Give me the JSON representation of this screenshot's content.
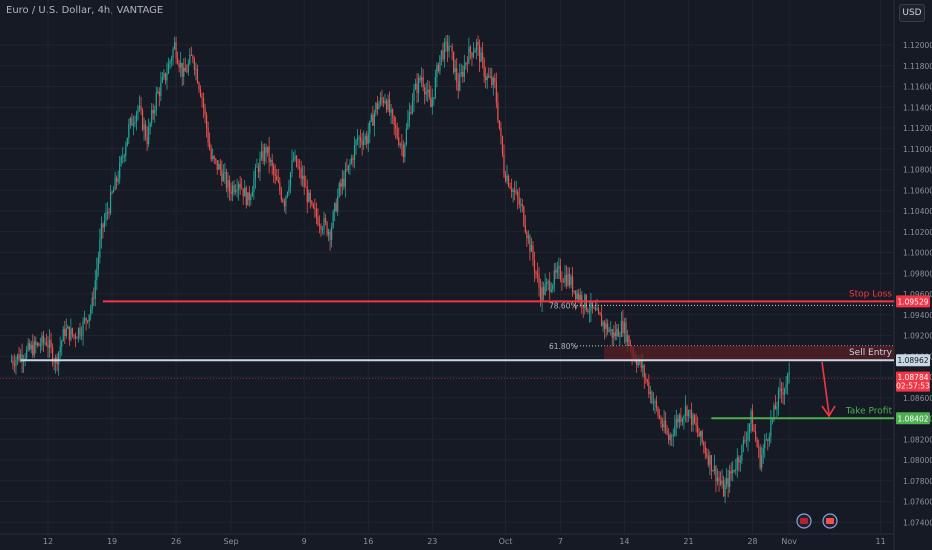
{
  "header": {
    "title": "Euro / U.S. Dollar, 4h, VANTAGE",
    "currency_button": "USD"
  },
  "colors": {
    "bg": "#161a25",
    "up": "#26a69a",
    "down": "#ef5350",
    "stop": "#f23645",
    "entry": "#c9d6e3",
    "tp": "#4caf50",
    "grid": "#202430"
  },
  "chart_data": {
    "type": "candlestick",
    "symbol": "EURUSD",
    "timeframe": "4h",
    "y_axis": {
      "range": [
        1.0735,
        1.1215
      ],
      "ticks": [
        "1.12000",
        "1.11800",
        "1.11600",
        "1.11400",
        "1.11200",
        "1.11000",
        "1.10800",
        "1.10600",
        "1.10400",
        "1.10200",
        "1.10000",
        "1.09800",
        "1.09600",
        "1.09400",
        "1.09200",
        "1.09000",
        "1.08800",
        "1.08600",
        "1.08400",
        "1.08200",
        "1.08000",
        "1.07800",
        "1.07600",
        "1.07400"
      ]
    },
    "x_axis": {
      "labels": [
        {
          "label": "12",
          "day": 0
        },
        {
          "label": "19",
          "day": 7
        },
        {
          "label": "26",
          "day": 14
        },
        {
          "label": "Sep",
          "day": 20
        },
        {
          "label": "9",
          "day": 28
        },
        {
          "label": "16",
          "day": 35
        },
        {
          "label": "23",
          "day": 42
        },
        {
          "label": "Oct",
          "day": 50
        },
        {
          "label": "7",
          "day": 56
        },
        {
          "label": "14",
          "day": 63
        },
        {
          "label": "21",
          "day": 70
        },
        {
          "label": "28",
          "day": 77
        },
        {
          "label": "Nov",
          "day": 81
        },
        {
          "label": "11",
          "day": 91
        }
      ]
    },
    "price_path": [
      [
        -4,
        1.0895
      ],
      [
        0,
        1.0915
      ],
      [
        1,
        1.0895
      ],
      [
        2,
        1.0925
      ],
      [
        3,
        1.092
      ],
      [
        4,
        1.093
      ],
      [
        5,
        1.095
      ],
      [
        6,
        1.102
      ],
      [
        7,
        1.105
      ],
      [
        8,
        1.108
      ],
      [
        9,
        1.112
      ],
      [
        10,
        1.114
      ],
      [
        11,
        1.111
      ],
      [
        12,
        1.115
      ],
      [
        13,
        1.117
      ],
      [
        14,
        1.12
      ],
      [
        15,
        1.117
      ],
      [
        16,
        1.119
      ],
      [
        17,
        1.115
      ],
      [
        18,
        1.109
      ],
      [
        19,
        1.108
      ],
      [
        20,
        1.106
      ],
      [
        21,
        1.107
      ],
      [
        22,
        1.105
      ],
      [
        23,
        1.108
      ],
      [
        24,
        1.11
      ],
      [
        25,
        1.107
      ],
      [
        26,
        1.105
      ],
      [
        27,
        1.109
      ],
      [
        28,
        1.107
      ],
      [
        29,
        1.104
      ],
      [
        30,
        1.103
      ],
      [
        31,
        1.102
      ],
      [
        32,
        1.106
      ],
      [
        33,
        1.108
      ],
      [
        34,
        1.111
      ],
      [
        35,
        1.111
      ],
      [
        36,
        1.114
      ],
      [
        37,
        1.115
      ],
      [
        38,
        1.112
      ],
      [
        39,
        1.11
      ],
      [
        40,
        1.115
      ],
      [
        41,
        1.117
      ],
      [
        42,
        1.114
      ],
      [
        43,
        1.119
      ],
      [
        44,
        1.12
      ],
      [
        45,
        1.116
      ],
      [
        46,
        1.119
      ],
      [
        47,
        1.12
      ],
      [
        48,
        1.117
      ],
      [
        49,
        1.116
      ],
      [
        50,
        1.108
      ],
      [
        51,
        1.106
      ],
      [
        52,
        1.104
      ],
      [
        53,
        1.1
      ],
      [
        54,
        1.096
      ],
      [
        55,
        1.097
      ],
      [
        56,
        1.098
      ],
      [
        57,
        1.0975
      ],
      [
        58,
        1.096
      ],
      [
        59,
        1.095
      ],
      [
        60,
        1.094
      ],
      [
        61,
        1.093
      ],
      [
        62,
        1.092
      ],
      [
        63,
        1.093
      ],
      [
        64,
        1.0905
      ],
      [
        65,
        1.089
      ],
      [
        66,
        1.0865
      ],
      [
        67,
        1.084
      ],
      [
        68,
        1.082
      ],
      [
        69,
        1.084
      ],
      [
        70,
        1.085
      ],
      [
        71,
        1.083
      ],
      [
        72,
        1.081
      ],
      [
        73,
        1.079
      ],
      [
        74,
        1.077
      ],
      [
        75,
        1.079
      ],
      [
        76,
        1.081
      ],
      [
        77,
        1.084
      ],
      [
        78,
        1.08
      ],
      [
        79,
        1.083
      ],
      [
        80,
        1.086
      ],
      [
        81,
        1.0878
      ]
    ],
    "levels": [
      {
        "name": "Stop Loss",
        "value": 1.09529,
        "label": "1.09529",
        "color": "#f23645",
        "start_day": 6
      },
      {
        "name": "Sell Entry",
        "value": 1.08962,
        "label": "1.08962",
        "color": "#c9d6e3",
        "start_day": -3
      },
      {
        "name": "Take Profit",
        "value": 1.08402,
        "label": "1.08402",
        "color": "#4caf50",
        "start_day": 72.5
      }
    ],
    "fib_levels": [
      {
        "label": "78.60%",
        "value": 1.0949
      },
      {
        "label": "61.80%",
        "value": 1.091
      }
    ],
    "current_price": {
      "value": 1.08784,
      "label": "1.08784",
      "countdown": "02:57:53"
    },
    "annotations": [
      "Stop Loss",
      "Sell Entry",
      "Take Profit"
    ]
  }
}
